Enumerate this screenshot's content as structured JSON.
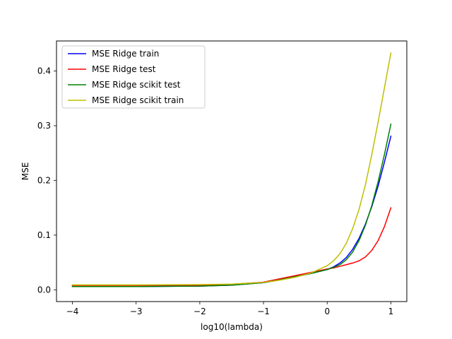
{
  "chart_data": {
    "type": "line",
    "title": "",
    "xlabel": "log10(lambda)",
    "ylabel": "MSE",
    "xlim": [
      -4.25,
      1.25
    ],
    "ylim": [
      -0.0215,
      0.455
    ],
    "xticks": [
      -4,
      -3,
      -2,
      -1,
      0,
      1
    ],
    "xtick_labels": [
      "−4",
      "−3",
      "−2",
      "−1",
      "0",
      "1"
    ],
    "yticks": [
      0.0,
      0.1,
      0.2,
      0.3,
      0.4
    ],
    "ytick_labels": [
      "0.0",
      "0.1",
      "0.2",
      "0.3",
      "0.4"
    ],
    "grid": false,
    "legend_position": "top-left",
    "x": [
      -4,
      -3,
      -2,
      -1.5,
      -1,
      -0.75,
      -0.5,
      -0.25,
      0,
      0.1,
      0.2,
      0.3,
      0.4,
      0.5,
      0.6,
      0.7,
      0.8,
      0.9,
      1
    ],
    "series": [
      {
        "name": "MSE Ridge train",
        "color": "#0000ff",
        "values": [
          0.006,
          0.006,
          0.0068,
          0.0085,
          0.013,
          0.018,
          0.024,
          0.03,
          0.037,
          0.042,
          0.049,
          0.059,
          0.074,
          0.094,
          0.12,
          0.152,
          0.19,
          0.234,
          0.281
        ]
      },
      {
        "name": "MSE Ridge test",
        "color": "#ff0000",
        "values": [
          0.008,
          0.008,
          0.0085,
          0.01,
          0.014,
          0.02,
          0.026,
          0.032,
          0.038,
          0.04,
          0.043,
          0.046,
          0.049,
          0.053,
          0.06,
          0.072,
          0.09,
          0.116,
          0.15
        ]
      },
      {
        "name": "MSE Ridge scikit test",
        "color": "#008000",
        "values": [
          0.006,
          0.006,
          0.0068,
          0.0085,
          0.013,
          0.018,
          0.024,
          0.03,
          0.037,
          0.041,
          0.046,
          0.055,
          0.069,
          0.09,
          0.118,
          0.154,
          0.198,
          0.248,
          0.303
        ]
      },
      {
        "name": "MSE Ridge scikit train",
        "color": "#bfbf00",
        "values": [
          0.009,
          0.009,
          0.0095,
          0.0105,
          0.0135,
          0.0175,
          0.023,
          0.031,
          0.044,
          0.053,
          0.066,
          0.085,
          0.112,
          0.147,
          0.192,
          0.247,
          0.307,
          0.37,
          0.433
        ]
      }
    ]
  }
}
